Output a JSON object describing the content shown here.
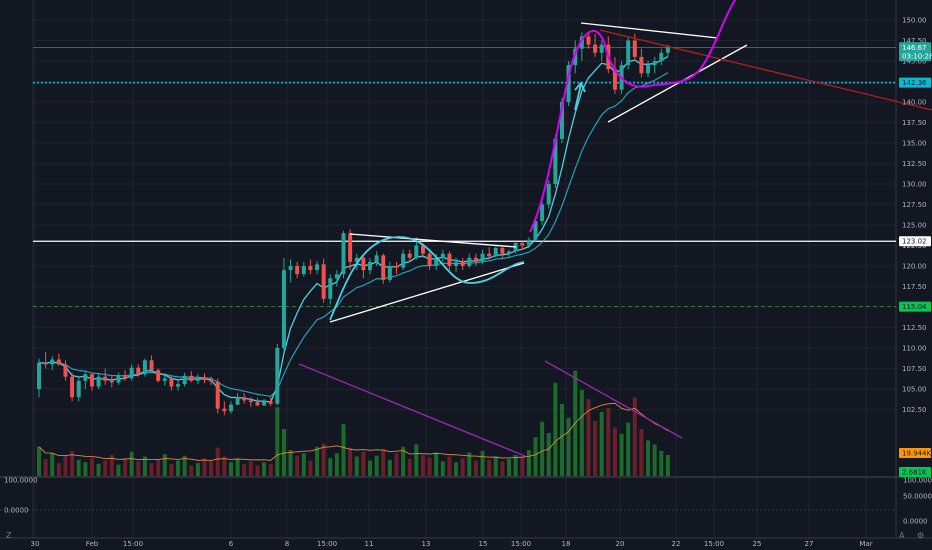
{
  "chart_data": {
    "type": "candlestick",
    "price_axis": {
      "ticks": [
        "150.00",
        "147.50",
        "145.00",
        "142.50",
        "140.00",
        "137.50",
        "135.00",
        "132.50",
        "130.00",
        "127.50",
        "125.00",
        "122.50",
        "120.00",
        "117.50",
        "115.00",
        "112.50",
        "110.00",
        "107.50",
        "105.00",
        "102.50"
      ],
      "ylim": [
        100.9,
        152.4
      ]
    },
    "indicator_axis": {
      "ticks": [
        "100.0000",
        "50.0000",
        "0.0000"
      ],
      "left_labels": [
        "100.0000",
        "0.0000"
      ]
    },
    "time_axis": {
      "ticks": [
        "30",
        "Feb",
        "15:00",
        "6",
        "8",
        "15:00",
        "11",
        "13",
        "15",
        "15:00",
        "18",
        "20",
        "22",
        "15:00",
        "25",
        "27",
        "Mar"
      ]
    },
    "horizontal_levels": [
      {
        "price": 146.67,
        "label": "146.67",
        "color": "#26a69a",
        "style": "thin"
      },
      {
        "price": 142.36,
        "label": "142.36",
        "color": "#00bcd4",
        "style": "dotted"
      },
      {
        "price": 123.02,
        "label": "123.02",
        "color": "#ffffff",
        "style": "solid"
      },
      {
        "price": 115.04,
        "label": "115.04",
        "color": "#4caf50",
        "style": "dashed"
      }
    ],
    "price_tags": [
      {
        "label": "146.67",
        "price": 146.67,
        "bg": "#26a69a",
        "fg": "#ffffff"
      },
      {
        "label": "03:10:28",
        "price": 145.6,
        "bg": "#26a69a",
        "fg": "#ffffff"
      },
      {
        "label": "142.36",
        "price": 142.36,
        "bg": "#00bcd4",
        "fg": "#131722"
      },
      {
        "label": "123.02",
        "price": 123.02,
        "bg": "#ffffff",
        "fg": "#131722"
      },
      {
        "label": "115.04",
        "price": 115.04,
        "bg": "#00c853",
        "fg": "#131722"
      },
      {
        "label": "19.944K",
        "price": 101.6,
        "bg": "#ff9800",
        "fg": "#131722"
      },
      {
        "label": "2.681K",
        "price": 99.8,
        "bg": "#00c853",
        "fg": "#131722"
      }
    ],
    "candles": [
      [
        105.0,
        108.7,
        104.0,
        108.2
      ],
      [
        108.2,
        109.5,
        107.5,
        108.0
      ],
      [
        108.0,
        109.0,
        107.3,
        108.6
      ],
      [
        108.6,
        109.3,
        107.8,
        108.0
      ],
      [
        108.0,
        108.5,
        106.0,
        106.5
      ],
      [
        106.5,
        107.0,
        103.5,
        104.0
      ],
      [
        104.0,
        106.5,
        103.5,
        106.0
      ],
      [
        106.0,
        107.2,
        105.0,
        106.8
      ],
      [
        106.8,
        107.0,
        104.8,
        105.3
      ],
      [
        105.3,
        106.9,
        105.0,
        106.5
      ],
      [
        106.5,
        107.5,
        105.5,
        106.0
      ],
      [
        106.0,
        106.7,
        105.2,
        105.8
      ],
      [
        105.8,
        107.0,
        105.5,
        106.7
      ],
      [
        106.7,
        107.3,
        106.0,
        106.3
      ],
      [
        106.3,
        108.0,
        106.0,
        107.6
      ],
      [
        107.6,
        108.0,
        106.5,
        106.8
      ],
      [
        106.8,
        108.7,
        106.5,
        108.5
      ],
      [
        108.5,
        109.1,
        107.0,
        107.3
      ],
      [
        107.3,
        107.5,
        105.8,
        106.0
      ],
      [
        106.0,
        106.8,
        105.4,
        106.3
      ],
      [
        106.3,
        106.6,
        104.8,
        105.3
      ],
      [
        105.3,
        106.0,
        104.8,
        105.6
      ],
      [
        105.6,
        107.0,
        105.3,
        106.6
      ],
      [
        106.6,
        107.2,
        105.8,
        106.0
      ],
      [
        106.0,
        106.8,
        105.6,
        106.4
      ],
      [
        106.4,
        106.9,
        105.7,
        106.1
      ],
      [
        106.1,
        106.5,
        105.5,
        105.9
      ],
      [
        105.9,
        106.3,
        102.0,
        102.6
      ],
      [
        102.6,
        103.5,
        101.8,
        102.3
      ],
      [
        102.3,
        103.5,
        102.0,
        103.1
      ],
      [
        103.1,
        104.5,
        103.0,
        104.0
      ],
      [
        104.0,
        104.5,
        103.2,
        103.6
      ],
      [
        103.6,
        104.0,
        102.8,
        103.4
      ],
      [
        103.4,
        103.9,
        102.9,
        103.0
      ],
      [
        103.0,
        103.8,
        102.9,
        103.5
      ],
      [
        103.5,
        104.0,
        102.9,
        103.2
      ],
      [
        103.2,
        110.5,
        103.0,
        110.0
      ],
      [
        110.0,
        121.0,
        109.5,
        119.5
      ],
      [
        119.5,
        120.8,
        118.0,
        120.0
      ],
      [
        120.0,
        120.5,
        118.5,
        119.0
      ],
      [
        119.0,
        120.5,
        118.7,
        120.0
      ],
      [
        120.0,
        120.8,
        119.0,
        119.5
      ],
      [
        119.5,
        120.6,
        119.0,
        120.2
      ],
      [
        120.2,
        120.9,
        115.5,
        116.0
      ],
      [
        116.0,
        119.0,
        115.3,
        118.5
      ],
      [
        118.5,
        119.5,
        117.5,
        119.0
      ],
      [
        119.0,
        124.3,
        118.5,
        124.0
      ],
      [
        124.0,
        124.5,
        119.5,
        120.5
      ],
      [
        120.5,
        121.5,
        119.5,
        121.0
      ],
      [
        121.0,
        121.3,
        118.5,
        119.5
      ],
      [
        119.5,
        121.0,
        119.0,
        120.5
      ],
      [
        120.5,
        121.8,
        120.0,
        121.3
      ],
      [
        121.3,
        121.5,
        117.8,
        118.3
      ],
      [
        118.3,
        120.5,
        118.0,
        120.0
      ],
      [
        120.0,
        120.5,
        119.0,
        119.8
      ],
      [
        119.8,
        122.0,
        119.5,
        121.5
      ],
      [
        121.5,
        122.0,
        120.5,
        121.0
      ],
      [
        121.0,
        123.5,
        120.8,
        122.5
      ],
      [
        122.5,
        122.8,
        121.0,
        121.5
      ],
      [
        121.5,
        121.8,
        119.5,
        120.0
      ],
      [
        120.0,
        121.5,
        119.5,
        121.0
      ],
      [
        121.0,
        122.0,
        120.5,
        121.5
      ],
      [
        121.5,
        121.8,
        119.5,
        120.0
      ],
      [
        120.0,
        121.0,
        119.3,
        120.5
      ],
      [
        120.5,
        121.0,
        119.5,
        120.0
      ],
      [
        120.0,
        121.5,
        119.8,
        121.0
      ],
      [
        121.0,
        121.5,
        120.0,
        120.5
      ],
      [
        120.5,
        122.0,
        120.2,
        121.5
      ],
      [
        121.5,
        122.3,
        120.8,
        121.2
      ],
      [
        121.2,
        122.5,
        121.0,
        122.2
      ],
      [
        122.2,
        122.5,
        121.0,
        121.5
      ],
      [
        121.5,
        122.0,
        121.0,
        121.8
      ],
      [
        121.8,
        123.0,
        121.5,
        122.8
      ],
      [
        122.8,
        123.0,
        122.0,
        122.5
      ],
      [
        122.5,
        123.5,
        122.2,
        123.2
      ],
      [
        123.2,
        126.0,
        123.0,
        125.5
      ],
      [
        125.5,
        128.0,
        125.0,
        127.5
      ],
      [
        127.5,
        130.5,
        127.0,
        130.0
      ],
      [
        130.0,
        136.0,
        129.5,
        135.5
      ],
      [
        135.5,
        140.5,
        135.0,
        140.0
      ],
      [
        140.0,
        145.0,
        139.5,
        144.5
      ],
      [
        144.5,
        147.5,
        143.5,
        146.5
      ],
      [
        146.5,
        148.5,
        145.0,
        148.0
      ],
      [
        148.0,
        148.5,
        146.5,
        147.0
      ],
      [
        147.0,
        148.3,
        145.5,
        146.0
      ],
      [
        146.0,
        147.5,
        145.0,
        147.0
      ],
      [
        147.0,
        148.0,
        143.5,
        144.0
      ],
      [
        144.0,
        145.5,
        141.0,
        141.5
      ],
      [
        141.5,
        145.0,
        141.0,
        144.5
      ],
      [
        144.5,
        148.0,
        144.0,
        147.5
      ],
      [
        147.5,
        148.3,
        145.0,
        145.5
      ],
      [
        145.5,
        146.5,
        143.0,
        143.5
      ],
      [
        143.5,
        145.0,
        143.0,
        144.5
      ],
      [
        144.5,
        145.5,
        143.5,
        145.0
      ],
      [
        145.0,
        146.5,
        144.5,
        146.0
      ],
      [
        146.0,
        147.0,
        145.5,
        146.67
      ]
    ],
    "volumes": [
      3.6,
      2.1,
      2.8,
      1.6,
      2.5,
      3.1,
      2.0,
      1.7,
      2.2,
      1.5,
      1.9,
      2.6,
      1.4,
      2.1,
      3.0,
      1.8,
      2.4,
      1.6,
      2.0,
      2.7,
      1.5,
      1.9,
      2.5,
      1.3,
      1.6,
      2.2,
      1.8,
      3.5,
      2.4,
      1.7,
      2.1,
      1.5,
      1.8,
      1.3,
      1.7,
      1.5,
      8.5,
      5.8,
      3.2,
      2.5,
      2.8,
      1.9,
      3.6,
      4.0,
      2.2,
      2.8,
      6.4,
      3.5,
      2.4,
      3.0,
      1.9,
      2.5,
      3.3,
      2.0,
      2.8,
      3.6,
      2.1,
      3.9,
      2.6,
      2.3,
      2.9,
      1.8,
      2.4,
      1.7,
      2.2,
      2.9,
      1.9,
      3.1,
      2.0,
      2.4,
      1.8,
      2.1,
      2.6,
      2.3,
      3.2,
      4.8,
      6.7,
      5.3,
      11.5,
      8.9,
      7.2,
      13.0,
      10.6,
      9.5,
      6.8,
      7.9,
      8.4,
      6.0,
      5.2,
      6.6,
      9.7,
      5.8,
      4.4,
      3.9,
      3.1,
      2.6
    ],
    "indicator_axis_note": "",
    "notes": []
  },
  "ui": {
    "corner_z": "Z",
    "corner_a": "A",
    "corner_gear": "⚙"
  }
}
